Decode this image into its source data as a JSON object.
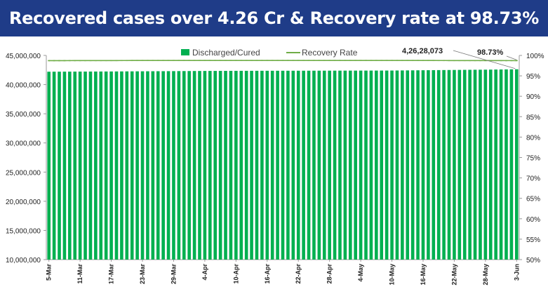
{
  "title": "Recovered cases over 4.26 Cr & Recovery rate at 98.73%",
  "chart_data": {
    "type": "bar",
    "title": "Recovered cases over 4.26 Cr & Recovery rate at 98.73%",
    "xlabel": "",
    "ylabel": "",
    "grid": false,
    "legend_position": "top",
    "categories": [
      "5-Mar",
      "11-Mar",
      "17-Mar",
      "23-Mar",
      "29-Mar",
      "4-Apr",
      "10-Apr",
      "16-Apr",
      "22-Apr",
      "28-Apr",
      "4-May",
      "10-May",
      "16-May",
      "22-May",
      "28-May",
      "3-Jun"
    ],
    "series": [
      {
        "name": "Discharged/Cured",
        "axis": "left",
        "color": "#00b050",
        "values": [
          42210000,
          42230000,
          42250000,
          42280000,
          42310000,
          42340000,
          42360000,
          42370000,
          42380000,
          42390000,
          42400000,
          42410000,
          42460000,
          42510000,
          42560000,
          42628073
        ]
      },
      {
        "name": "Recovery Rate",
        "axis": "right",
        "type": "line",
        "color": "#70ad47",
        "values": [
          98.72,
          98.74,
          98.75,
          98.76,
          98.76,
          98.76,
          98.76,
          98.76,
          98.76,
          98.76,
          98.76,
          98.76,
          98.76,
          98.75,
          98.74,
          98.73
        ]
      }
    ],
    "y_left": {
      "min": 10000000,
      "max": 45000000,
      "ticks": [
        "10,000,000",
        "15,000,000",
        "20,000,000",
        "25,000,000",
        "30,000,000",
        "35,000,000",
        "40,000,000",
        "45,000,000"
      ]
    },
    "y_right": {
      "min": 50,
      "max": 100,
      "ticks": [
        "50%",
        "55%",
        "60%",
        "65%",
        "70%",
        "75%",
        "80%",
        "85%",
        "90%",
        "95%",
        "100%"
      ]
    },
    "annotations": [
      {
        "text": "4,26,28,073",
        "target": "Discharged/Cured"
      },
      {
        "text": "98.73%",
        "target": "Recovery Rate"
      }
    ]
  }
}
